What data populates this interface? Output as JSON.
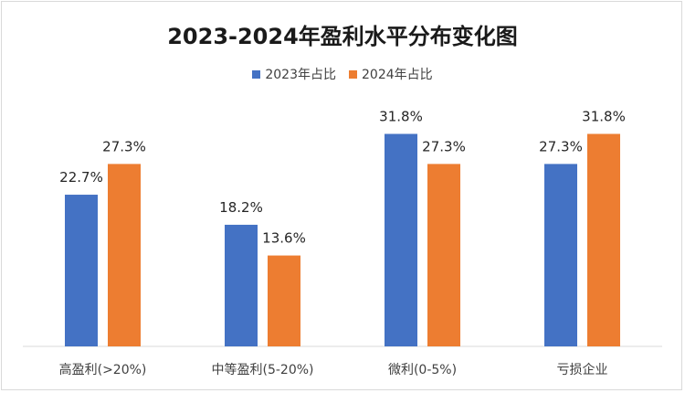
{
  "chart_data": {
    "type": "bar",
    "title": "2023-2024年盈利水平分布变化图",
    "categories": [
      "高盈利(>20%)",
      "中等盈利(5-20%)",
      "微利(0-5%)",
      "亏损企业"
    ],
    "series": [
      {
        "name": "2023年占比",
        "color": "#4472c4",
        "values": [
          22.7,
          18.2,
          31.8,
          27.3
        ],
        "labels": [
          "22.7%",
          "18.2%",
          "31.8%",
          "27.3%"
        ]
      },
      {
        "name": "2024年占比",
        "color": "#ed7d31",
        "values": [
          27.3,
          13.6,
          27.3,
          31.8
        ],
        "labels": [
          "27.3%",
          "13.6%",
          "27.3%",
          "31.8%"
        ]
      }
    ],
    "ylim": [
      0,
      35
    ],
    "legend_position": "top"
  }
}
